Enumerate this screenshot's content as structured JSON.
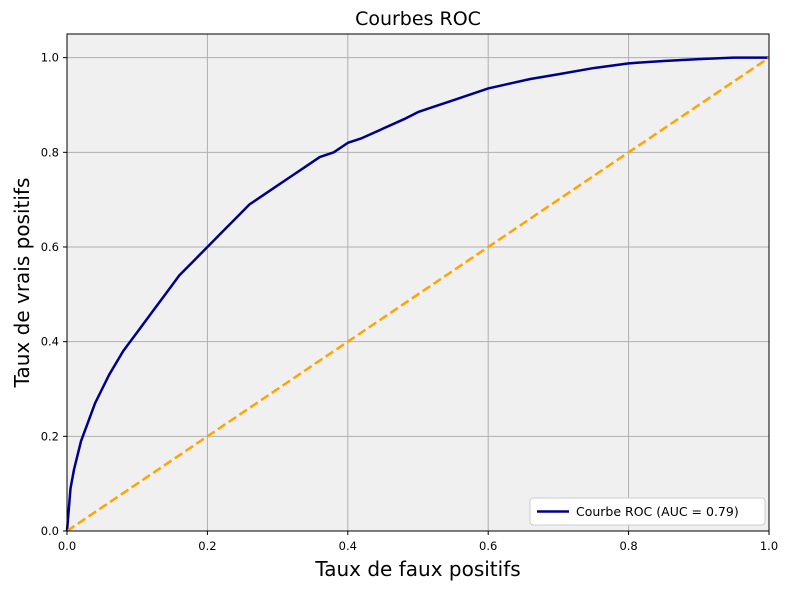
{
  "chart_data": {
    "type": "line",
    "title": "Courbes ROC",
    "xlabel": "Taux de faux positifs",
    "ylabel": "Taux de vrais positifs",
    "xlim": [
      0.0,
      1.0
    ],
    "ylim": [
      0.0,
      1.05
    ],
    "x_ticks": [
      "0.0",
      "0.2",
      "0.4",
      "0.6",
      "0.8",
      "1.0"
    ],
    "y_ticks": [
      "0.0",
      "0.2",
      "0.4",
      "0.6",
      "0.8",
      "1.0"
    ],
    "grid": true,
    "background_color": "#f0f0f0",
    "legend_position": "lower-right",
    "series": [
      {
        "name": "Courbe ROC (AUC = 0.79)",
        "color": "#00008b",
        "line_style": "solid",
        "x": [
          0.0,
          0.005,
          0.01,
          0.02,
          0.03,
          0.04,
          0.05,
          0.06,
          0.08,
          0.1,
          0.12,
          0.14,
          0.16,
          0.18,
          0.2,
          0.22,
          0.24,
          0.26,
          0.28,
          0.3,
          0.32,
          0.34,
          0.36,
          0.38,
          0.4,
          0.42,
          0.45,
          0.48,
          0.5,
          0.52,
          0.55,
          0.58,
          0.6,
          0.63,
          0.66,
          0.7,
          0.75,
          0.8,
          0.85,
          0.9,
          0.95,
          1.0
        ],
        "y": [
          0.0,
          0.09,
          0.13,
          0.19,
          0.23,
          0.27,
          0.3,
          0.33,
          0.38,
          0.42,
          0.46,
          0.5,
          0.54,
          0.57,
          0.6,
          0.63,
          0.66,
          0.69,
          0.71,
          0.73,
          0.75,
          0.77,
          0.79,
          0.8,
          0.82,
          0.83,
          0.85,
          0.87,
          0.885,
          0.895,
          0.91,
          0.925,
          0.935,
          0.945,
          0.955,
          0.965,
          0.978,
          0.988,
          0.993,
          0.997,
          1.0,
          1.0
        ]
      },
      {
        "name": "",
        "color": "#ffa500",
        "line_style": "dashed",
        "x": [
          0.0,
          1.0
        ],
        "y": [
          0.0,
          1.0
        ]
      }
    ]
  }
}
